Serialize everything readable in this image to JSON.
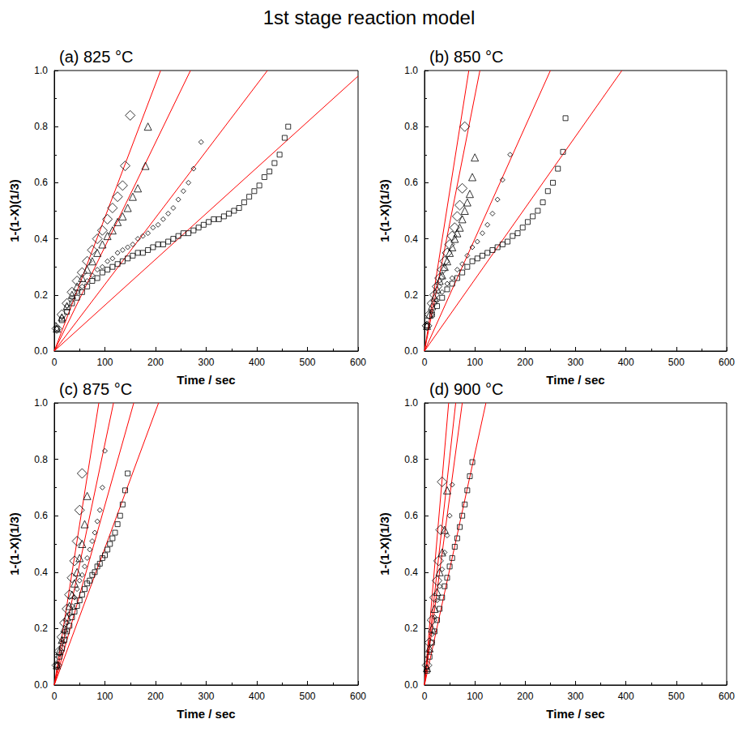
{
  "title": "1st stage reaction model",
  "chart_data": [
    {
      "type": "scatter",
      "title": "(a) 825 °C",
      "x_label": "Time / sec",
      "y_label": "1-(1-X)(1/3)",
      "xlim": [
        0,
        600
      ],
      "ylim": [
        0,
        1
      ],
      "xticks": [
        0,
        100,
        200,
        300,
        400,
        500,
        600
      ],
      "yticks": [
        {
          "value": 0,
          "label": "0.0"
        },
        0.2,
        0.4,
        0.6,
        0.8,
        {
          "value": 1,
          "label": "1.0"
        }
      ],
      "grid": false,
      "series": [
        {
          "type": "scatter",
          "color": "#000000",
          "marker": "diamond",
          "x": [
            5,
            15,
            25,
            35,
            45,
            55,
            65,
            75,
            85,
            95,
            105,
            115,
            125,
            135,
            140,
            150
          ],
          "values": [
            0.08,
            0.13,
            0.17,
            0.21,
            0.25,
            0.28,
            0.32,
            0.36,
            0.4,
            0.43,
            0.47,
            0.51,
            0.55,
            0.59,
            0.66,
            0.84
          ]
        },
        {
          "type": "scatter",
          "color": "#000000",
          "marker": "triangle",
          "x": [
            5,
            15,
            25,
            35,
            45,
            55,
            65,
            75,
            85,
            95,
            105,
            115,
            125,
            135,
            145,
            155,
            165,
            180,
            185
          ],
          "values": [
            0.08,
            0.12,
            0.16,
            0.2,
            0.23,
            0.26,
            0.29,
            0.32,
            0.35,
            0.38,
            0.41,
            0.43,
            0.46,
            0.48,
            0.51,
            0.55,
            0.58,
            0.66,
            0.8
          ]
        },
        {
          "type": "scatter",
          "color": "#000000",
          "marker": "diamond_small",
          "x": [
            5,
            15,
            25,
            35,
            45,
            55,
            65,
            75,
            85,
            95,
            105,
            115,
            125,
            135,
            145,
            155,
            165,
            175,
            185,
            195,
            205,
            215,
            225,
            235,
            245,
            255,
            265,
            275,
            290
          ],
          "values": [
            0.08,
            0.12,
            0.16,
            0.19,
            0.21,
            0.23,
            0.25,
            0.27,
            0.29,
            0.3,
            0.32,
            0.33,
            0.35,
            0.36,
            0.37,
            0.38,
            0.4,
            0.41,
            0.42,
            0.44,
            0.45,
            0.47,
            0.49,
            0.51,
            0.54,
            0.57,
            0.6,
            0.65,
            0.745
          ]
        },
        {
          "type": "scatter",
          "color": "#000000",
          "marker": "square",
          "x": [
            5,
            15,
            25,
            35,
            45,
            55,
            65,
            75,
            85,
            95,
            105,
            115,
            125,
            135,
            145,
            155,
            165,
            175,
            185,
            195,
            205,
            215,
            225,
            235,
            245,
            255,
            265,
            275,
            285,
            295,
            305,
            315,
            325,
            335,
            345,
            355,
            365,
            375,
            385,
            395,
            405,
            415,
            425,
            435,
            445,
            455,
            462
          ],
          "values": [
            0.08,
            0.11,
            0.14,
            0.17,
            0.19,
            0.21,
            0.23,
            0.25,
            0.26,
            0.28,
            0.29,
            0.3,
            0.31,
            0.32,
            0.33,
            0.34,
            0.35,
            0.35,
            0.36,
            0.37,
            0.38,
            0.38,
            0.39,
            0.4,
            0.41,
            0.42,
            0.42,
            0.43,
            0.44,
            0.45,
            0.46,
            0.47,
            0.47,
            0.48,
            0.49,
            0.5,
            0.51,
            0.53,
            0.55,
            0.57,
            0.59,
            0.62,
            0.64,
            0.67,
            0.7,
            0.76,
            0.8
          ]
        },
        {
          "type": "line",
          "color": "#ff0000",
          "line_style": "solid",
          "x": [
            0,
            210
          ],
          "values": [
            0,
            1
          ]
        },
        {
          "type": "line",
          "color": "#ff0000",
          "line_style": "solid",
          "x": [
            0,
            269
          ],
          "values": [
            0,
            1
          ]
        },
        {
          "type": "line",
          "color": "#ff0000",
          "line_style": "solid",
          "x": [
            0,
            421
          ],
          "values": [
            0,
            1
          ]
        },
        {
          "type": "line",
          "color": "#ff0000",
          "line_style": "solid",
          "x": [
            0,
            600
          ],
          "values": [
            0,
            0.98
          ]
        }
      ]
    },
    {
      "type": "scatter",
      "title": "(b) 850 °C",
      "x_label": "Time / sec",
      "y_label": "1-(1-X)(1/3)",
      "xlim": [
        0,
        600
      ],
      "ylim": [
        0,
        1
      ],
      "xticks": [
        0,
        100,
        200,
        300,
        400,
        500,
        600
      ],
      "yticks": [
        {
          "value": 0,
          "label": "0.0"
        },
        0.2,
        0.4,
        0.6,
        0.8,
        {
          "value": 1,
          "label": "1.0"
        }
      ],
      "grid": false,
      "series": [
        {
          "type": "scatter",
          "color": "#000000",
          "marker": "diamond",
          "x": [
            5,
            10,
            15,
            20,
            25,
            30,
            35,
            40,
            45,
            50,
            55,
            60,
            65,
            70,
            75,
            80
          ],
          "values": [
            0.09,
            0.13,
            0.17,
            0.2,
            0.23,
            0.26,
            0.29,
            0.32,
            0.35,
            0.38,
            0.41,
            0.44,
            0.48,
            0.52,
            0.58,
            0.8
          ]
        },
        {
          "type": "scatter",
          "color": "#000000",
          "marker": "triangle",
          "x": [
            5,
            10,
            15,
            20,
            25,
            30,
            35,
            40,
            45,
            50,
            55,
            60,
            65,
            70,
            75,
            80,
            85,
            90,
            95,
            100
          ],
          "values": [
            0.09,
            0.13,
            0.16,
            0.19,
            0.22,
            0.25,
            0.27,
            0.3,
            0.32,
            0.35,
            0.37,
            0.4,
            0.42,
            0.44,
            0.47,
            0.5,
            0.53,
            0.56,
            0.62,
            0.69
          ]
        },
        {
          "type": "scatter",
          "color": "#000000",
          "marker": "diamond_small",
          "x": [
            5,
            15,
            25,
            35,
            45,
            55,
            65,
            75,
            85,
            95,
            105,
            115,
            125,
            135,
            145,
            155,
            170
          ],
          "values": [
            0.09,
            0.14,
            0.18,
            0.21,
            0.24,
            0.26,
            0.29,
            0.31,
            0.34,
            0.37,
            0.39,
            0.42,
            0.45,
            0.49,
            0.54,
            0.61,
            0.7
          ]
        },
        {
          "type": "scatter",
          "color": "#000000",
          "marker": "square",
          "x": [
            5,
            15,
            25,
            35,
            45,
            55,
            65,
            75,
            85,
            95,
            105,
            115,
            125,
            135,
            145,
            155,
            165,
            175,
            185,
            195,
            205,
            215,
            225,
            235,
            245,
            255,
            265,
            275,
            280
          ],
          "values": [
            0.09,
            0.13,
            0.16,
            0.19,
            0.22,
            0.24,
            0.26,
            0.28,
            0.3,
            0.32,
            0.33,
            0.34,
            0.35,
            0.36,
            0.37,
            0.38,
            0.39,
            0.41,
            0.42,
            0.44,
            0.46,
            0.48,
            0.5,
            0.53,
            0.57,
            0.6,
            0.65,
            0.71,
            0.83
          ]
        },
        {
          "type": "line",
          "color": "#ff0000",
          "line_style": "solid",
          "x": [
            0,
            88
          ],
          "values": [
            0,
            1
          ]
        },
        {
          "type": "line",
          "color": "#ff0000",
          "line_style": "solid",
          "x": [
            0,
            110
          ],
          "values": [
            0,
            1
          ]
        },
        {
          "type": "line",
          "color": "#ff0000",
          "line_style": "solid",
          "x": [
            0,
            250
          ],
          "values": [
            0,
            1
          ]
        },
        {
          "type": "line",
          "color": "#ff0000",
          "line_style": "solid",
          "x": [
            0,
            392
          ],
          "values": [
            0,
            1
          ]
        }
      ]
    },
    {
      "type": "scatter",
      "title": "(c) 875 °C",
      "x_label": "Time / sec",
      "y_label": "1-(1-X)(1/3)",
      "xlim": [
        0,
        600
      ],
      "ylim": [
        0,
        1
      ],
      "xticks": [
        0,
        100,
        200,
        300,
        400,
        500,
        600
      ],
      "yticks": [
        {
          "value": 0,
          "label": "0.0"
        },
        0.2,
        0.4,
        0.6,
        0.8,
        {
          "value": 1,
          "label": "1.0"
        }
      ],
      "grid": false,
      "series": [
        {
          "type": "scatter",
          "color": "#000000",
          "marker": "diamond",
          "x": [
            5,
            10,
            15,
            20,
            25,
            30,
            35,
            40,
            45,
            50,
            55
          ],
          "values": [
            0.07,
            0.12,
            0.17,
            0.22,
            0.27,
            0.32,
            0.38,
            0.44,
            0.51,
            0.62,
            0.75
          ]
        },
        {
          "type": "scatter",
          "color": "#000000",
          "marker": "triangle",
          "x": [
            5,
            10,
            15,
            20,
            25,
            30,
            35,
            40,
            45,
            50,
            55,
            60,
            65
          ],
          "values": [
            0.07,
            0.12,
            0.16,
            0.2,
            0.24,
            0.28,
            0.32,
            0.36,
            0.4,
            0.45,
            0.5,
            0.57,
            0.67
          ]
        },
        {
          "type": "scatter",
          "color": "#000000",
          "marker": "diamond_small",
          "x": [
            5,
            10,
            15,
            20,
            25,
            30,
            35,
            40,
            45,
            50,
            55,
            60,
            65,
            70,
            75,
            80,
            85,
            90,
            95,
            100
          ],
          "values": [
            0.07,
            0.11,
            0.15,
            0.19,
            0.22,
            0.25,
            0.28,
            0.31,
            0.34,
            0.37,
            0.39,
            0.42,
            0.45,
            0.48,
            0.51,
            0.54,
            0.58,
            0.62,
            0.7,
            0.83
          ]
        },
        {
          "type": "scatter",
          "color": "#000000",
          "marker": "square",
          "x": [
            5,
            10,
            15,
            20,
            25,
            30,
            35,
            40,
            45,
            50,
            55,
            60,
            65,
            70,
            75,
            80,
            85,
            90,
            95,
            100,
            105,
            110,
            115,
            120,
            125,
            130,
            135,
            140,
            145
          ],
          "values": [
            0.07,
            0.1,
            0.13,
            0.16,
            0.19,
            0.21,
            0.24,
            0.26,
            0.28,
            0.3,
            0.32,
            0.34,
            0.36,
            0.37,
            0.39,
            0.4,
            0.42,
            0.43,
            0.45,
            0.46,
            0.48,
            0.5,
            0.52,
            0.54,
            0.57,
            0.6,
            0.64,
            0.69,
            0.75
          ]
        },
        {
          "type": "line",
          "color": "#ff0000",
          "line_style": "solid",
          "x": [
            0,
            88
          ],
          "values": [
            0,
            1
          ]
        },
        {
          "type": "line",
          "color": "#ff0000",
          "line_style": "solid",
          "x": [
            0,
            117
          ],
          "values": [
            0,
            1
          ]
        },
        {
          "type": "line",
          "color": "#ff0000",
          "line_style": "solid",
          "x": [
            0,
            157
          ],
          "values": [
            0,
            1
          ]
        },
        {
          "type": "line",
          "color": "#ff0000",
          "line_style": "solid",
          "x": [
            0,
            206
          ],
          "values": [
            0,
            1
          ]
        }
      ]
    },
    {
      "type": "scatter",
      "title": "(d) 900 °C",
      "x_label": "Time / sec",
      "y_label": "1-(1-X)(1/3)",
      "xlim": [
        0,
        600
      ],
      "ylim": [
        0,
        1
      ],
      "xticks": [
        0,
        100,
        200,
        300,
        400,
        500,
        600
      ],
      "yticks": [
        {
          "value": 0,
          "label": "0.0"
        },
        0.2,
        0.4,
        0.6,
        0.8,
        {
          "value": 1,
          "label": "1.0"
        }
      ],
      "grid": false,
      "series": [
        {
          "type": "scatter",
          "color": "#000000",
          "marker": "diamond",
          "x": [
            5,
            10,
            15,
            20,
            25,
            28,
            32,
            35
          ],
          "values": [
            0.07,
            0.15,
            0.23,
            0.31,
            0.37,
            0.44,
            0.55,
            0.72
          ]
        },
        {
          "type": "scatter",
          "color": "#000000",
          "marker": "triangle",
          "x": [
            5,
            10,
            15,
            20,
            25,
            30,
            35,
            40,
            45
          ],
          "values": [
            0.06,
            0.13,
            0.2,
            0.27,
            0.33,
            0.4,
            0.47,
            0.55,
            0.69
          ]
        },
        {
          "type": "scatter",
          "color": "#000000",
          "marker": "diamond_small",
          "x": [
            5,
            10,
            15,
            20,
            25,
            30,
            35,
            40,
            45,
            50,
            55
          ],
          "values": [
            0.06,
            0.12,
            0.18,
            0.24,
            0.3,
            0.35,
            0.41,
            0.47,
            0.53,
            0.6,
            0.71
          ]
        },
        {
          "type": "scatter",
          "color": "#000000",
          "marker": "square",
          "x": [
            5,
            10,
            15,
            20,
            25,
            30,
            35,
            40,
            45,
            50,
            55,
            60,
            65,
            70,
            75,
            80,
            85,
            90,
            95
          ],
          "values": [
            0.05,
            0.1,
            0.15,
            0.19,
            0.23,
            0.27,
            0.31,
            0.35,
            0.38,
            0.42,
            0.45,
            0.49,
            0.52,
            0.56,
            0.6,
            0.64,
            0.69,
            0.74,
            0.79
          ]
        },
        {
          "type": "line",
          "color": "#ff0000",
          "line_style": "solid",
          "x": [
            0,
            48
          ],
          "values": [
            0,
            1
          ]
        },
        {
          "type": "line",
          "color": "#ff0000",
          "line_style": "solid",
          "x": [
            0,
            62
          ],
          "values": [
            0,
            1
          ]
        },
        {
          "type": "line",
          "color": "#ff0000",
          "line_style": "solid",
          "x": [
            0,
            75
          ],
          "values": [
            0,
            1
          ]
        },
        {
          "type": "line",
          "color": "#ff0000",
          "line_style": "solid",
          "x": [
            0,
            122
          ],
          "values": [
            0,
            1
          ]
        }
      ]
    }
  ]
}
